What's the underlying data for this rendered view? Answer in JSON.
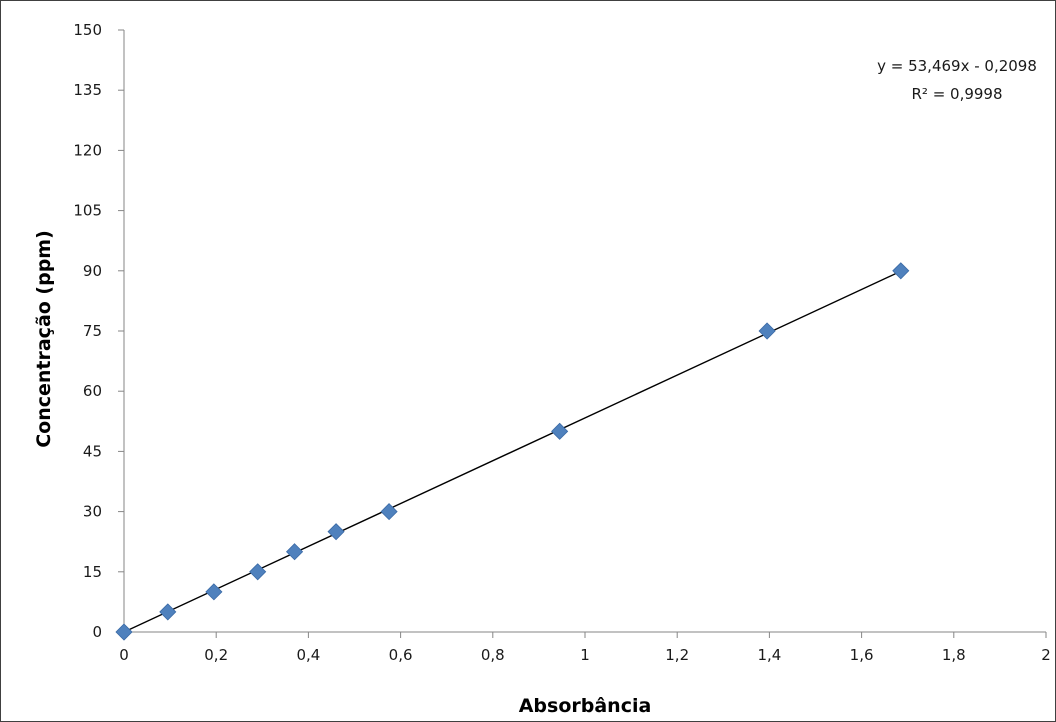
{
  "chart_data": {
    "type": "scatter",
    "xlabel": "Absorbância",
    "ylabel": "Concentração (ppm)",
    "xlim": [
      0,
      2
    ],
    "ylim": [
      0,
      150
    ],
    "x_ticks": [
      "0",
      "0,2",
      "0,4",
      "0,6",
      "0,8",
      "1",
      "1,2",
      "1,4",
      "1,6",
      "1,8",
      "2"
    ],
    "y_ticks": [
      "0",
      "15",
      "30",
      "45",
      "60",
      "75",
      "90",
      "105",
      "120",
      "135",
      "150"
    ],
    "grid": false,
    "series": [
      {
        "marker": "diamond",
        "color": "#4f81bd",
        "points": [
          {
            "x": 0,
            "y": 0
          },
          {
            "x": 0.095,
            "y": 5
          },
          {
            "x": 0.195,
            "y": 10
          },
          {
            "x": 0.29,
            "y": 15
          },
          {
            "x": 0.37,
            "y": 20
          },
          {
            "x": 0.46,
            "y": 25
          },
          {
            "x": 0.575,
            "y": 30
          },
          {
            "x": 0.945,
            "y": 50
          },
          {
            "x": 1.395,
            "y": 75
          },
          {
            "x": 1.685,
            "y": 90
          }
        ]
      }
    ],
    "trendline": {
      "type": "linear",
      "slope": 53.469,
      "intercept": -0.2098,
      "x_range": [
        0,
        1.685
      ],
      "color": "#000000",
      "equation": "y = 53,469x - 0,2098",
      "r_squared": "R² = 0,9998"
    }
  }
}
